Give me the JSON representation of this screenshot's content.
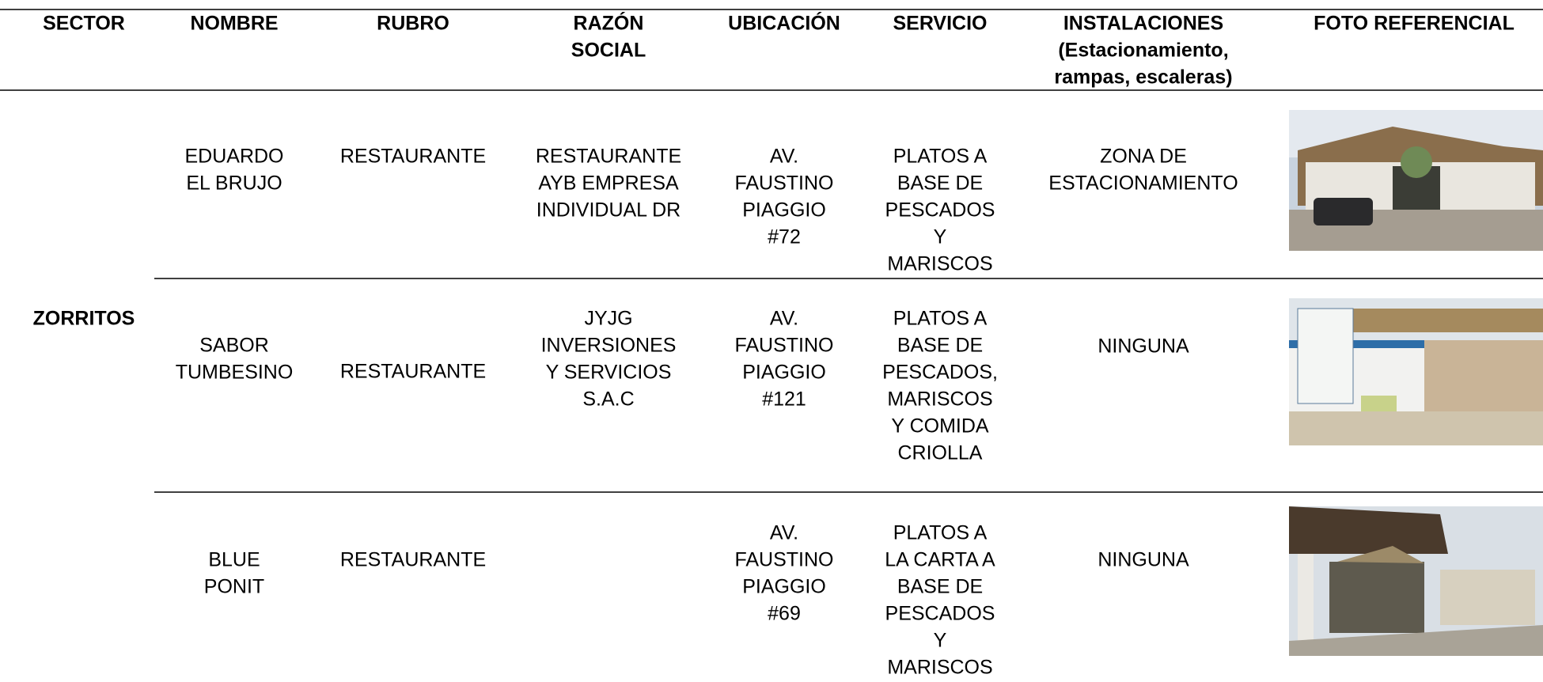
{
  "table": {
    "header": [
      [
        "SECTOR"
      ],
      [
        "NOMBRE"
      ],
      [
        "RUBRO"
      ],
      [
        "RAZÓN",
        "SOCIAL"
      ],
      [
        "UBICACIÓN"
      ],
      [
        "SERVICIO"
      ],
      [
        "INSTALACIONES",
        "(Estacionamiento,",
        "rampas, escaleras)"
      ],
      [
        "FOTO REFERENCIAL"
      ]
    ],
    "sector": "ZORRITOS",
    "rows": [
      {
        "nombre": [
          "EDUARDO",
          "EL BRUJO"
        ],
        "rubro": [
          "RESTAURANTE"
        ],
        "razon_social": [
          "RESTAURANTE",
          "AYB EMPRESA",
          "INDIVIDUAL DR"
        ],
        "ubicacion": [
          "AV.",
          "FAUSTINO",
          "PIAGGIO",
          "#72"
        ],
        "servicio": [
          "PLATOS A",
          "BASE DE",
          "PESCADOS",
          "Y",
          "MARISCOS"
        ],
        "instalaciones": [
          "ZONA DE",
          "ESTACIONAMIENTO"
        ]
      },
      {
        "nombre": [
          "SABOR",
          "TUMBESINO"
        ],
        "rubro": [
          "RESTAURANTE"
        ],
        "razon_social": [
          "JYJG",
          "INVERSIONES",
          "Y SERVICIOS",
          "S.A.C"
        ],
        "ubicacion": [
          "AV.",
          "FAUSTINO",
          "PIAGGIO",
          "#121"
        ],
        "servicio": [
          "PLATOS A",
          "BASE DE",
          "PESCADOS,",
          "MARISCOS",
          "Y COMIDA",
          "CRIOLLA"
        ],
        "instalaciones": [
          "NINGUNA"
        ]
      },
      {
        "nombre": [
          "BLUE",
          "PONIT"
        ],
        "rubro": [
          "RESTAURANTE"
        ],
        "ubicacion": [
          "AV.",
          "FAUSTINO",
          "PIAGGIO",
          "#69"
        ],
        "servicio": [
          "PLATOS A",
          "LA CARTA A",
          "BASE DE",
          "PESCADOS",
          "Y",
          "MARISCOS"
        ],
        "instalaciones": [
          "NINGUNA"
        ]
      }
    ]
  }
}
